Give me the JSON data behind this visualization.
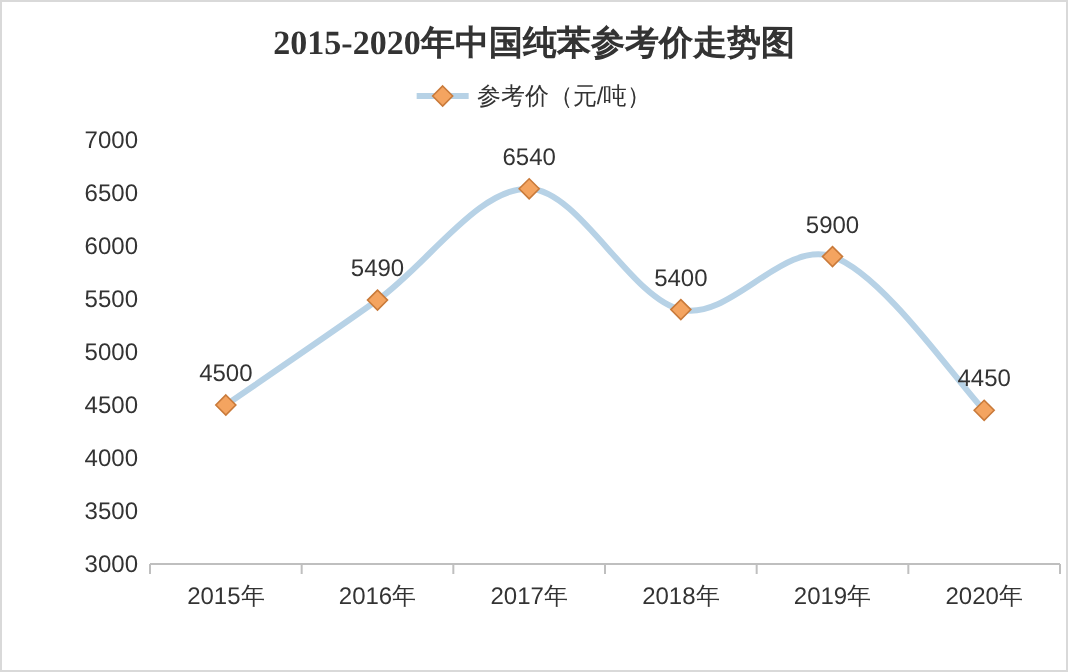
{
  "chart_data": {
    "type": "line",
    "title": "2015-2020年中国纯苯参考价走势图",
    "categories": [
      "2015年",
      "2016年",
      "2017年",
      "2018年",
      "2019年",
      "2020年"
    ],
    "series": [
      {
        "name": "参考价（元/吨）",
        "color": "#b7d2e6",
        "values": [
          4500,
          5490,
          6540,
          5400,
          5900,
          4450
        ]
      }
    ],
    "ylim": [
      3000,
      7000
    ],
    "yticks": [
      3000,
      3500,
      4000,
      4500,
      5000,
      5500,
      6000,
      6500,
      7000
    ],
    "data_labels": true,
    "legend": "top",
    "marker": "diamond"
  }
}
